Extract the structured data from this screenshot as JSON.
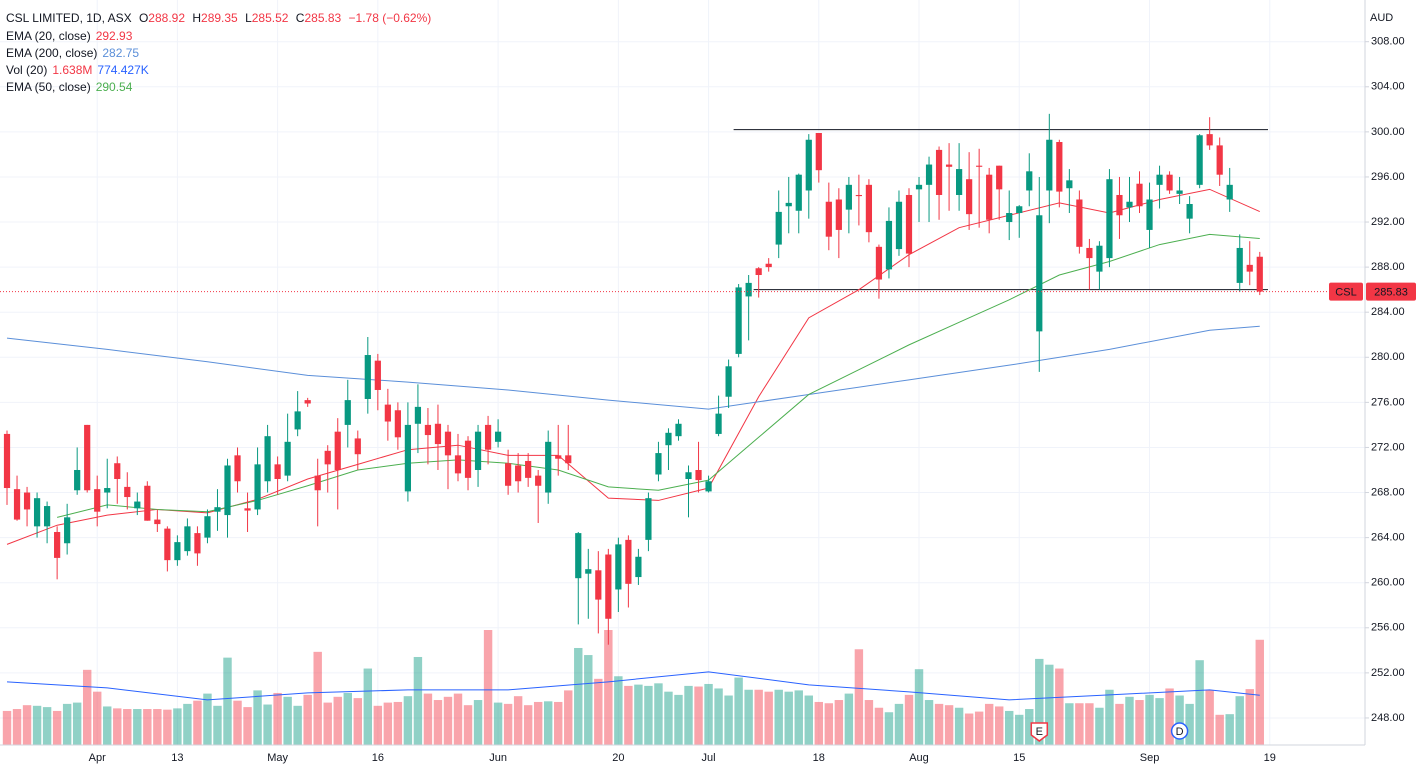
{
  "chart_data": {
    "type": "candlestick",
    "symbol": "CSL LIMITED, 1D, ASX",
    "ticker": "CSL",
    "currency": "AUD",
    "ohlc_labels": [
      "O",
      "H",
      "L",
      "C"
    ],
    "change": "−1.78 (−0.62%)",
    "xlim": [
      -0.7,
      135.5
    ],
    "xticks": [
      {
        "value": 9,
        "label": "Apr"
      },
      {
        "value": 17,
        "label": "13"
      },
      {
        "value": 27,
        "label": "May"
      },
      {
        "value": 37,
        "label": "16"
      },
      {
        "value": 49,
        "label": "Jun"
      },
      {
        "value": 61,
        "label": "20"
      },
      {
        "value": 70,
        "label": "Jul"
      },
      {
        "value": 81,
        "label": "18"
      },
      {
        "value": 91,
        "label": "Aug"
      },
      {
        "value": 101,
        "label": "15"
      },
      {
        "value": 114,
        "label": "Sep"
      },
      {
        "value": 126,
        "label": "19"
      }
    ],
    "ylim": [
      245.6,
      311.7
    ],
    "yticks": [
      {
        "value": 248,
        "label": "248.00"
      },
      {
        "value": 252,
        "label": "252.00"
      },
      {
        "value": 256,
        "label": "256.00"
      },
      {
        "value": 260,
        "label": "260.00"
      },
      {
        "value": 264,
        "label": "264.00"
      },
      {
        "value": 268,
        "label": "268.00"
      },
      {
        "value": 272,
        "label": "272.00"
      },
      {
        "value": 276,
        "label": "276.00"
      },
      {
        "value": 280,
        "label": "280.00"
      },
      {
        "value": 284,
        "label": "284.00"
      },
      {
        "value": 288,
        "label": "288.00"
      },
      {
        "value": 292,
        "label": "292.00"
      },
      {
        "value": 296,
        "label": "296.00"
      },
      {
        "value": 300,
        "label": "300.00"
      },
      {
        "value": 304,
        "label": "304.00"
      },
      {
        "value": 308,
        "label": "308.00"
      }
    ],
    "grid": true,
    "up_color": "#089981",
    "down_color": "#f23645",
    "candles": {
      "open": [
        273.2,
        268.3,
        268,
        265,
        265,
        264.5,
        263.5,
        268.2,
        274,
        268.3,
        268,
        270.6,
        268.5,
        266.6,
        268.6,
        265.6,
        264.8,
        262,
        262.8,
        264.4,
        264,
        266.3,
        266,
        271.3,
        266.6,
        266.5,
        269,
        270.5,
        269.5,
        273.6,
        276.2,
        269.5,
        271.7,
        273.4,
        274,
        272.8,
        276.3,
        279.7,
        275.8,
        275.3,
        268.1,
        274.1,
        274,
        274.1,
        273.4,
        271.3,
        272.6,
        270,
        274,
        272.5,
        270.6,
        270.4,
        270.8,
        269.5,
        268,
        271.3,
        271.3,
        260.4,
        260.8,
        261.1,
        262.5,
        259.4,
        263.8,
        260.5,
        263.8,
        269.6,
        272.2,
        273,
        269.2,
        270,
        268.1,
        273.2,
        276.5,
        280.3,
        285.4,
        287.9,
        288.3,
        290,
        293.4,
        293,
        294.8,
        299.9,
        293.8,
        294,
        293.1,
        294.4,
        295.3,
        289.8,
        287.8,
        289.6,
        294.4,
        294.9,
        295.3,
        298.4,
        297.1,
        294.4,
        295.8,
        297,
        296.2,
        297,
        292,
        292.8,
        294.8,
        282.3,
        294.8,
        299.1,
        295,
        294,
        289.7,
        287.6,
        288.8,
        294.4,
        293.3,
        295.4,
        291.3,
        295.3,
        296.2,
        294.5,
        292.3,
        295.3,
        299.8,
        298.8,
        294,
        286.6,
        288.2,
        288.92
      ],
      "high": [
        273.5,
        269.5,
        268.5,
        268,
        267.2,
        265,
        267,
        272,
        274,
        269.5,
        271,
        271.2,
        269.8,
        268,
        269,
        266.5,
        265,
        264.2,
        265.7,
        265,
        266.5,
        268.3,
        271,
        272,
        268,
        272,
        274,
        271.2,
        275,
        277,
        276.4,
        271,
        272.2,
        274.6,
        278,
        273.5,
        281.8,
        280.3,
        277.2,
        276,
        276,
        277.6,
        275.5,
        275.8,
        274,
        273.2,
        273,
        274,
        274.8,
        274.5,
        271.8,
        271.5,
        271.5,
        270,
        273.5,
        274,
        274,
        264.5,
        263,
        262.8,
        263,
        264,
        264.2,
        263,
        268,
        272.5,
        273.7,
        274.5,
        270.4,
        272.5,
        269.5,
        276.6,
        279.8,
        286.5,
        287.3,
        288,
        288.8,
        294.8,
        296,
        296.3,
        299.8,
        299.9,
        295.5,
        295,
        296,
        296.2,
        295.8,
        290,
        293.3,
        294.8,
        295,
        296,
        297.8,
        298.7,
        299,
        299,
        298.2,
        298.5,
        296.8,
        297,
        294.8,
        293.5,
        298.1,
        296,
        301.6,
        299.3,
        296.7,
        294.8,
        290.5,
        290.3,
        296.7,
        296,
        296,
        296.5,
        295.5,
        297,
        296.5,
        296,
        294.3,
        299.8,
        301.3,
        299.5,
        296.8,
        290.9,
        290.3,
        289.35
      ],
      "low": [
        266.9,
        265.5,
        265,
        264,
        263.5,
        260.3,
        262.5,
        267.8,
        268,
        265,
        266.6,
        267,
        266.5,
        266,
        265.5,
        264.5,
        261,
        261.5,
        262.4,
        261.5,
        263.5,
        264.6,
        264,
        268,
        264.5,
        266,
        268,
        267.8,
        269,
        273,
        275.6,
        265,
        268,
        266.5,
        272,
        270,
        275,
        275.3,
        272.6,
        271.8,
        267.2,
        271.5,
        270.5,
        270,
        268.3,
        269,
        268.2,
        268.5,
        270.5,
        272,
        267.8,
        268,
        268.5,
        265.3,
        267,
        269.5,
        270,
        256.3,
        256.8,
        255.5,
        254.5,
        257.4,
        257.8,
        259.8,
        262.8,
        269,
        270,
        272.6,
        265.8,
        268,
        268,
        273,
        275.5,
        280,
        281.5,
        285.3,
        287.6,
        288.8,
        291,
        291,
        292.3,
        295.5,
        289.5,
        288.8,
        291,
        291.7,
        290.2,
        285.2,
        287,
        289,
        288,
        292,
        292,
        292.2,
        293,
        293,
        291.3,
        291.5,
        291,
        292.2,
        290.4,
        290.6,
        293.4,
        278.7,
        291.9,
        293.3,
        292.8,
        289.2,
        286,
        286,
        288,
        290.5,
        292,
        292.8,
        289.7,
        293.2,
        294.5,
        293.6,
        291,
        295,
        298.4,
        295.2,
        292.9,
        285.8,
        286.4,
        285.52
      ],
      "close": [
        268.4,
        265.6,
        266.5,
        267.5,
        266.8,
        262.2,
        265.8,
        270,
        268.2,
        266.3,
        268.4,
        269.2,
        267.6,
        267.2,
        265.5,
        265.2,
        262,
        263.6,
        265,
        262.6,
        265.9,
        266.7,
        270.4,
        269,
        266.4,
        270.5,
        273,
        269.2,
        272.5,
        275.2,
        275.9,
        268.2,
        270.5,
        270,
        276.2,
        271.4,
        280.2,
        277.1,
        274.3,
        272.9,
        274,
        275.6,
        273.1,
        272.3,
        271.3,
        269.7,
        269.3,
        273.4,
        271.8,
        273.4,
        268.6,
        269,
        269.3,
        268.6,
        272.5,
        271,
        270.6,
        264.4,
        261.2,
        258.5,
        256.8,
        263.4,
        259.9,
        262.3,
        267.5,
        271.5,
        273.3,
        274.1,
        269.8,
        269.1,
        269,
        275,
        279.2,
        286.2,
        286.6,
        287.3,
        288,
        292.9,
        293.7,
        296.2,
        299.3,
        296.6,
        290.7,
        291.3,
        295.3,
        294.3,
        291.1,
        286.9,
        292.1,
        293.8,
        289.2,
        295.3,
        297.1,
        294.4,
        296.9,
        296.7,
        292.7,
        296.9,
        292.2,
        294.9,
        292.8,
        293.4,
        296.5,
        292.6,
        299.3,
        294.7,
        295.7,
        289.8,
        288.8,
        289.9,
        295.8,
        292.6,
        293.8,
        293.4,
        294,
        296.2,
        294.8,
        294.8,
        293.6,
        299.7,
        298.8,
        296.2,
        295.3,
        289.7,
        287.6,
        285.83
      ]
    },
    "change_color": "#f23645",
    "indicators": [
      {
        "name": "EMA (20, close)",
        "color": "#f23645",
        "x": [
          0,
          5,
          10,
          15,
          20,
          25,
          30,
          35,
          40,
          45,
          50,
          55,
          60,
          65,
          70,
          75,
          80,
          85,
          90,
          95,
          100,
          105,
          110,
          115,
          120,
          125
        ],
        "values": [
          263.4,
          265.1,
          266,
          266.5,
          266.2,
          267.4,
          269.2,
          270.5,
          271.8,
          272.2,
          271.3,
          271.3,
          267.5,
          267.3,
          268.4,
          276.5,
          283.5,
          286,
          289.1,
          291.5,
          292.6,
          293.7,
          292.8,
          294,
          294.9,
          292.93
        ]
      },
      {
        "name": "EMA (200, close)",
        "color": "#5b8fd9",
        "x": [
          0,
          10,
          20,
          30,
          40,
          50,
          60,
          70,
          80,
          90,
          100,
          110,
          120,
          125
        ],
        "values": [
          281.7,
          280.7,
          279.6,
          278.4,
          277.8,
          277.1,
          276.2,
          275.4,
          276.7,
          278,
          279.3,
          280.7,
          282.4,
          282.75
        ]
      },
      {
        "name": "EMA (50, close)",
        "color": "#4caf50",
        "x": [
          5,
          10,
          15,
          20,
          25,
          30,
          35,
          40,
          45,
          50,
          55,
          60,
          65,
          70,
          75,
          80,
          85,
          90,
          95,
          100,
          105,
          110,
          115,
          120,
          125
        ],
        "values": [
          265.8,
          266.9,
          266.5,
          266.3,
          267.3,
          268.6,
          270,
          270.6,
          270.9,
          270.6,
          270,
          268.5,
          268.2,
          269.1,
          272.9,
          276.7,
          278.9,
          281.1,
          283.1,
          285.1,
          287.3,
          288.5,
          290,
          290.9,
          290.54
        ]
      }
    ],
    "volume": {
      "name": "Vol (20)",
      "values": [
        530000,
        560000,
        620000,
        610000,
        590000,
        530000,
        640000,
        660000,
        1170000,
        830000,
        600000,
        570000,
        560000,
        560000,
        560000,
        560000,
        550000,
        570000,
        640000,
        690000,
        800000,
        610000,
        1360000,
        690000,
        590000,
        850000,
        630000,
        810000,
        750000,
        610000,
        780000,
        1450000,
        660000,
        750000,
        810000,
        730000,
        1190000,
        610000,
        660000,
        670000,
        760000,
        1370000,
        800000,
        700000,
        750000,
        800000,
        620000,
        700000,
        1790000,
        660000,
        640000,
        760000,
        620000,
        670000,
        680000,
        670000,
        850000,
        1510000,
        1400000,
        1030000,
        1790000,
        1070000,
        920000,
        940000,
        920000,
        960000,
        830000,
        780000,
        920000,
        910000,
        950000,
        880000,
        770000,
        1050000,
        860000,
        860000,
        830000,
        860000,
        830000,
        850000,
        770000,
        670000,
        650000,
        700000,
        800000,
        1490000,
        700000,
        580000,
        510000,
        640000,
        780000,
        1180000,
        700000,
        640000,
        620000,
        580000,
        490000,
        520000,
        640000,
        600000,
        530000,
        470000,
        560000,
        1340000,
        1250000,
        1190000,
        650000,
        650000,
        650000,
        580000,
        860000,
        640000,
        750000,
        700000,
        780000,
        730000,
        880000,
        770000,
        640000,
        1320000,
        850000,
        470000,
        480000,
        760000,
        870000,
        1638000
      ],
      "value_label": "1.638M",
      "ma": {
        "color": "#2962ff",
        "x": [
          0,
          10,
          20,
          30,
          40,
          50,
          60,
          70,
          80,
          90,
          100,
          110,
          120,
          125
        ],
        "values": [
          983000,
          889000,
          702000,
          811000,
          858000,
          858000,
          983000,
          1139000,
          936000,
          827000,
          702000,
          780000,
          858000,
          774427
        ],
        "value_label": "774.427K"
      }
    },
    "levels": [
      300.2,
      286.0
    ],
    "level_starts": [
      73,
      75
    ],
    "events": [
      {
        "index": 103,
        "label": "E",
        "color": "#f23645"
      },
      {
        "index": 117,
        "label": "D",
        "color": "#2962ff"
      }
    ]
  }
}
